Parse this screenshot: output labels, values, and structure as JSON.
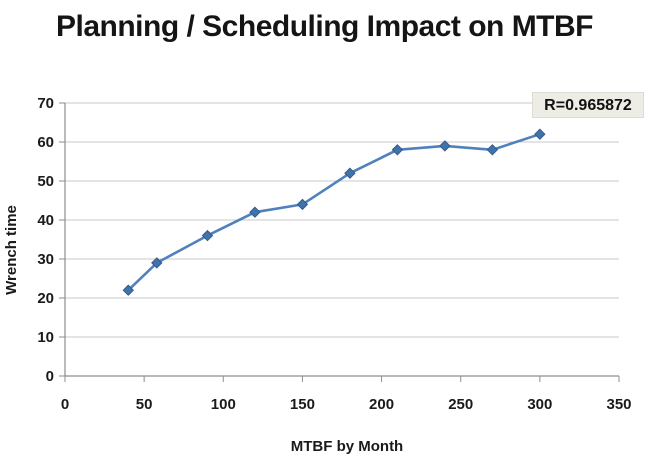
{
  "title": "Planning / Scheduling Impact on MTBF",
  "annotation": {
    "label": "R=0.965872"
  },
  "chart_data": {
    "type": "line",
    "title": "Planning / Scheduling Impact on MTBF",
    "xlabel": "MTBF by Month",
    "ylabel": "Wrench time",
    "x": [
      40,
      58,
      90,
      120,
      150,
      180,
      210,
      240,
      270,
      300
    ],
    "y": [
      22,
      29,
      36,
      42,
      44,
      52,
      58,
      59,
      58,
      62
    ],
    "xlim": [
      0,
      350
    ],
    "ylim": [
      0,
      70
    ],
    "x_ticks": [
      0,
      50,
      100,
      150,
      200,
      250,
      300,
      350
    ],
    "y_ticks": [
      0,
      10,
      20,
      30,
      40,
      50,
      60,
      70
    ],
    "grid": "horizontal",
    "legend": "none",
    "marker": "diamond",
    "annotation": "R=0.965872",
    "colors": {
      "line": "#4f81bd",
      "marker_fill": "#4173ab",
      "marker_stroke": "#34598c",
      "gridline": "#c9c9c9",
      "axis": "#8e8e8e",
      "text": "#1a1a1a",
      "annotation_bg": "#edede6",
      "annotation_border": "#dcdcd2"
    }
  }
}
